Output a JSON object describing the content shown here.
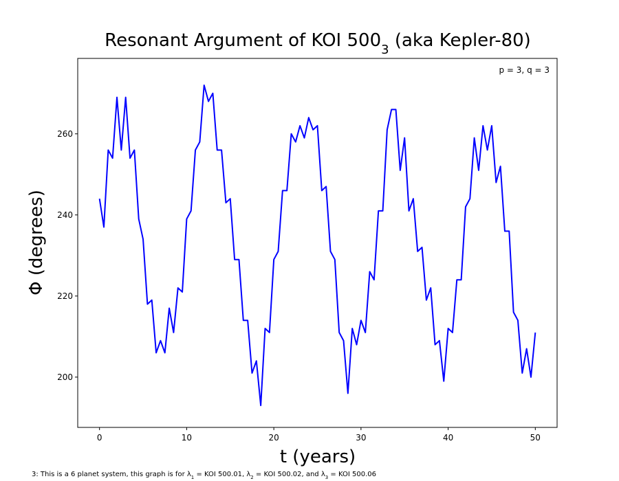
{
  "chart_data": {
    "type": "line",
    "title": [
      "Resonant Argument of KOI 500",
      "3",
      " (aka Kepler-80)"
    ],
    "xlabel": "t (years)",
    "ylabel": "Φ (degrees)",
    "annotation": "p = 3, q = 3",
    "footnote": [
      "3: This is a 6 planet system, this graph is for λ",
      "1",
      " = KOI 500.01, λ",
      "2",
      " = KOI 500.02, and λ",
      "3",
      " = KOI 500.06"
    ],
    "color": "#0000ff",
    "xlim": [
      -2.5,
      52.5
    ],
    "ylim": [
      187.6,
      278.6
    ],
    "xticks": [
      0,
      10,
      20,
      30,
      40,
      50
    ],
    "yticks": [
      200,
      220,
      240,
      260
    ],
    "x": [
      0,
      0.5,
      1,
      1.5,
      2,
      2.5,
      3,
      3.5,
      4,
      4.5,
      5,
      5.5,
      6,
      6.5,
      7,
      7.5,
      8,
      8.5,
      9,
      9.5,
      10,
      10.5,
      11,
      11.5,
      12,
      12.5,
      13,
      13.5,
      14,
      14.5,
      15,
      15.5,
      16,
      16.5,
      17,
      17.5,
      18,
      18.5,
      19,
      19.5,
      20,
      20.5,
      21,
      21.5,
      22,
      22.5,
      23,
      23.5,
      24,
      24.5,
      25,
      25.5,
      26,
      26.5,
      27,
      27.5,
      28,
      28.5,
      29,
      29.5,
      30,
      30.5,
      31,
      31.5,
      32,
      32.5,
      33,
      33.5,
      34,
      34.5,
      35,
      35.5,
      36,
      36.5,
      37,
      37.5,
      38,
      38.5,
      39,
      39.5,
      40,
      40.5,
      41,
      41.5,
      42,
      42.5,
      43,
      43.5,
      44,
      44.5,
      45,
      45.5,
      46,
      46.5,
      47,
      47.5,
      48,
      48.5,
      49,
      49.5,
      50
    ],
    "values": [
      244,
      237,
      256,
      254,
      269,
      256,
      269,
      254,
      256,
      239,
      234,
      218,
      219,
      206,
      209,
      206,
      217,
      211,
      222,
      221,
      239,
      241,
      256,
      258,
      272,
      268,
      270,
      256,
      256,
      243,
      244,
      229,
      229,
      214,
      214,
      201,
      204,
      193,
      212,
      211,
      229,
      231,
      246,
      246,
      260,
      258,
      262,
      259,
      264,
      261,
      262,
      246,
      247,
      231,
      229,
      211,
      209,
      196,
      212,
      208,
      214,
      211,
      226,
      224,
      241,
      241,
      261,
      266,
      266,
      251,
      259,
      241,
      244,
      231,
      232,
      219,
      222,
      208,
      209,
      199,
      212,
      211,
      224,
      224,
      242,
      244,
      259,
      251,
      262,
      256,
      262,
      248,
      252,
      236,
      236,
      216,
      214,
      201,
      207,
      200,
      211
    ]
  }
}
